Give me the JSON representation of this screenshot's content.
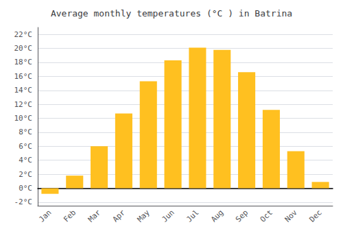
{
  "chart_data": {
    "type": "bar",
    "title": "Average monthly temperatures (°C ) in Batrina",
    "categories": [
      "Jan",
      "Feb",
      "Mar",
      "Apr",
      "May",
      "Jun",
      "Jul",
      "Aug",
      "Sep",
      "Oct",
      "Nov",
      "Dec"
    ],
    "values": [
      -0.8,
      1.8,
      6.0,
      10.7,
      15.3,
      18.3,
      20.1,
      19.8,
      16.6,
      11.2,
      5.3,
      0.9
    ],
    "color": "#FFC020",
    "ylim": [
      -2.5,
      23.0
    ],
    "yticks": [
      {
        "value": -2,
        "label": "-2°C"
      },
      {
        "value": 0,
        "label": "0°C"
      },
      {
        "value": 2,
        "label": "2°C"
      },
      {
        "value": 4,
        "label": "4°C"
      },
      {
        "value": 6,
        "label": "6°C"
      },
      {
        "value": 8,
        "label": "8°C"
      },
      {
        "value": 10,
        "label": "10°C"
      },
      {
        "value": 12,
        "label": "12°C"
      },
      {
        "value": 14,
        "label": "14°C"
      },
      {
        "value": 16,
        "label": "16°C"
      },
      {
        "value": 18,
        "label": "18°C"
      },
      {
        "value": 20,
        "label": "20°C"
      },
      {
        "value": 22,
        "label": "22°C"
      }
    ],
    "grid": true
  }
}
